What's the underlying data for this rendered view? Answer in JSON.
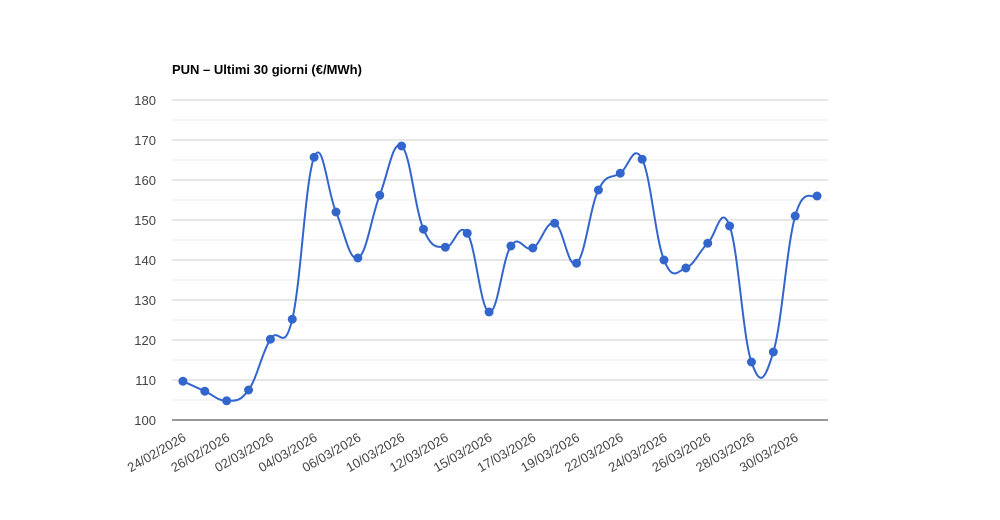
{
  "chart_data": {
    "type": "line",
    "title": "PUN – Ultimi 30 giorni (€/MWh)",
    "categories": [
      "24/02/2026",
      null,
      "26/02/2026",
      null,
      "02/03/2026",
      null,
      "04/03/2026",
      null,
      "06/03/2026",
      null,
      "10/03/2026",
      null,
      "12/03/2026",
      null,
      "15/03/2026",
      null,
      "17/03/2026",
      null,
      "19/03/2026",
      null,
      "22/03/2026",
      null,
      "24/03/2026",
      null,
      "26/03/2026",
      null,
      "28/03/2026",
      null,
      "30/03/2026",
      null
    ],
    "values": [
      109.7,
      107.2,
      104.8,
      107.5,
      120.2,
      125.2,
      165.7,
      152,
      140.5,
      156.2,
      168.5,
      147.7,
      143.2,
      146.7,
      127,
      143.5,
      143,
      149.2,
      139.2,
      157.5,
      161.7,
      165.2,
      140,
      138,
      144.2,
      148.5,
      114.5,
      117,
      151,
      156
    ],
    "color": "#3366cc",
    "ylim": [
      100,
      180
    ],
    "yticks": [
      100,
      110,
      120,
      130,
      140,
      150,
      160,
      170,
      180
    ],
    "grid": true
  }
}
